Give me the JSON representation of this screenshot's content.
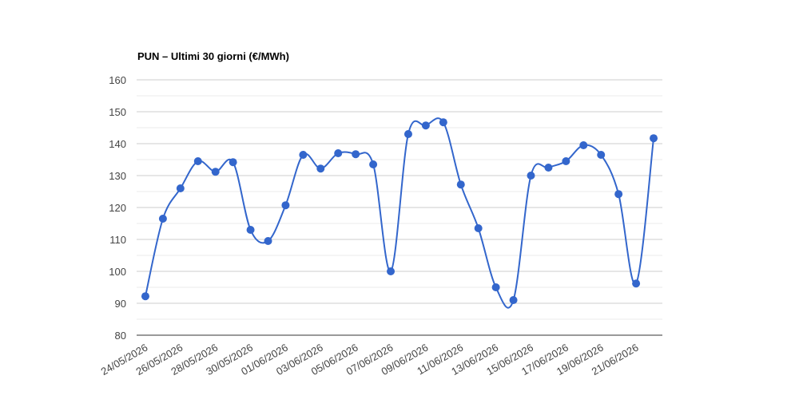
{
  "chart_data": {
    "type": "line",
    "title": "PUN – Ultimi 30 giorni (€/MWh)",
    "categories": [
      "24/05/2026",
      null,
      "26/05/2026",
      null,
      "28/05/2026",
      null,
      "30/05/2026",
      null,
      "01/06/2026",
      null,
      "03/06/2026",
      null,
      "05/06/2026",
      null,
      "07/06/2026",
      null,
      "09/06/2026",
      null,
      "11/06/2026",
      null,
      "13/06/2026",
      null,
      "15/06/2026",
      null,
      "17/06/2026",
      null,
      "19/06/2026",
      null,
      "21/06/2026",
      null
    ],
    "series": [
      {
        "color": "#3366cc",
        "values": [
          92.2,
          116.5,
          126,
          134.5,
          131.2,
          134.2,
          113,
          109.5,
          120.7,
          136.5,
          132.2,
          137,
          136.7,
          133.5,
          100,
          143,
          145.7,
          146.7,
          127.2,
          113.5,
          95,
          91,
          130,
          132.5,
          134.5,
          139.5,
          136.5,
          124.2,
          96.2,
          141.7
        ]
      }
    ],
    "ylim": [
      80,
      160
    ],
    "yticks": [
      80,
      90,
      100,
      110,
      120,
      130,
      140,
      150,
      160
    ],
    "grid": true,
    "minor_grid": true,
    "smooth": true
  }
}
